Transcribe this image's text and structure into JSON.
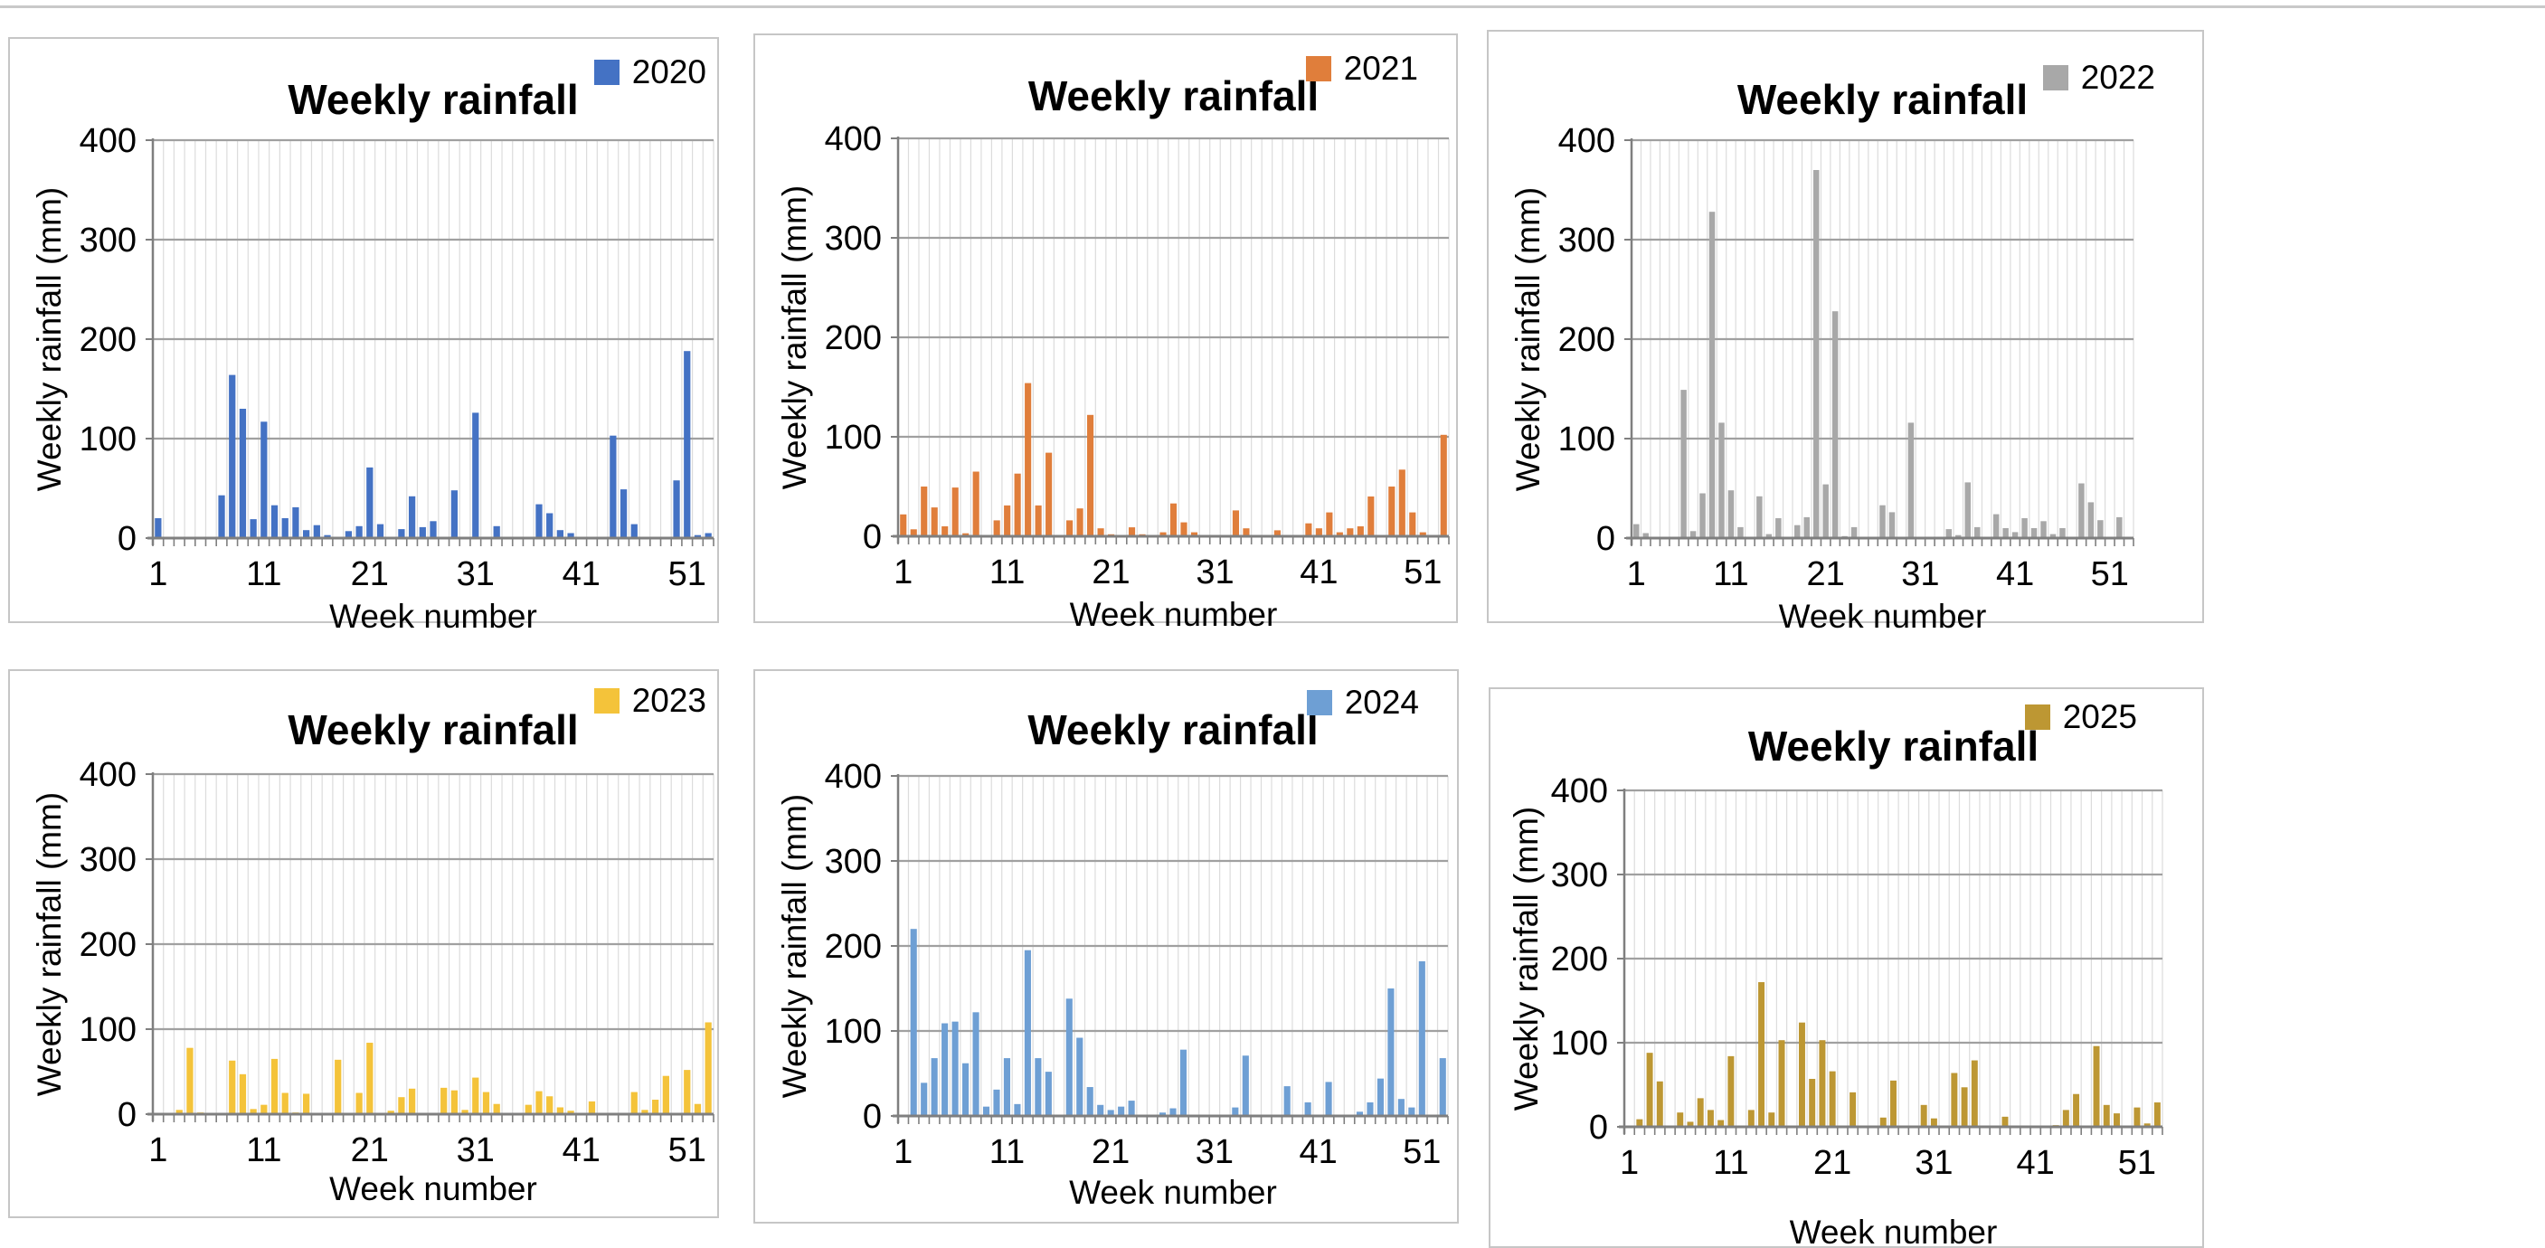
{
  "page": {
    "background": "#ffffff",
    "top_rule_color": "#c9c9c9",
    "layout_hint": "6 bar chart panels, 2 rows x 3 columns, one panel per year"
  },
  "chart_data": [
    {
      "type": "bar",
      "title": "Weekly rainfall",
      "legend": "2020",
      "legend_position": "top-right",
      "color": "#4472C4",
      "xlabel": "Week number",
      "ylabel": "Weekly rainfall (mm)",
      "x_ticks": [
        1,
        11,
        21,
        31,
        41,
        51
      ],
      "y_ticks": [
        0,
        100,
        200,
        300,
        400
      ],
      "ylim": [
        0,
        400
      ],
      "num_weeks": 53,
      "grid": "horizontal major + vertical minor per week",
      "values": [
        20,
        0,
        0,
        0,
        0,
        0,
        43,
        164,
        130,
        19,
        117,
        33,
        20,
        31,
        8,
        13,
        3,
        0,
        7,
        12,
        71,
        14,
        0,
        9,
        42,
        11,
        17,
        0,
        48,
        0,
        126,
        0,
        12,
        0,
        0,
        0,
        34,
        25,
        8,
        5,
        0,
        0,
        0,
        103,
        49,
        14,
        0,
        0,
        0,
        58,
        188,
        3,
        5
      ]
    },
    {
      "type": "bar",
      "title": "Weekly rainfall",
      "legend": "2021",
      "legend_position": "top-right",
      "color": "#E07E3B",
      "xlabel": "Week number",
      "ylabel": "Weekly rainfall (mm)",
      "x_ticks": [
        1,
        11,
        21,
        31,
        41,
        51
      ],
      "y_ticks": [
        0,
        100,
        200,
        300,
        400
      ],
      "ylim": [
        0,
        400
      ],
      "num_weeks": 53,
      "grid": "horizontal major + vertical minor per week",
      "values": [
        22,
        7,
        50,
        29,
        10,
        49,
        3,
        65,
        0,
        16,
        31,
        63,
        154,
        31,
        84,
        0,
        16,
        28,
        122,
        8,
        2,
        0,
        9,
        2,
        0,
        4,
        33,
        14,
        4,
        0,
        0,
        0,
        26,
        8,
        0,
        0,
        6,
        0,
        0,
        13,
        8,
        24,
        4,
        8,
        10,
        40,
        0,
        50,
        67,
        24,
        4,
        0,
        102
      ]
    },
    {
      "type": "bar",
      "title": "Weekly rainfall",
      "legend": "2022",
      "legend_position": "top-right",
      "color": "#A8A8A8",
      "xlabel": "Week number",
      "ylabel": "Weekly rainfall (mm)",
      "x_ticks": [
        1,
        11,
        21,
        31,
        41,
        51
      ],
      "y_ticks": [
        0,
        100,
        200,
        300,
        400
      ],
      "ylim": [
        0,
        400
      ],
      "num_weeks": 53,
      "grid": "horizontal major + vertical minor per week",
      "values": [
        14,
        5,
        0,
        0,
        0,
        149,
        7,
        45,
        328,
        116,
        48,
        11,
        0,
        42,
        4,
        20,
        0,
        13,
        21,
        370,
        54,
        228,
        2,
        11,
        0,
        0,
        33,
        26,
        0,
        116,
        0,
        1,
        1,
        9,
        3,
        56,
        11,
        0,
        24,
        10,
        6,
        20,
        10,
        17,
        4,
        10,
        0,
        55,
        36,
        18,
        0,
        21,
        0
      ]
    },
    {
      "type": "bar",
      "title": "Weekly rainfall",
      "legend": "2023",
      "legend_position": "top-right",
      "color": "#F4C33A",
      "xlabel": "Week number",
      "ylabel": "Weekly rainfall (mm)",
      "x_ticks": [
        1,
        11,
        21,
        31,
        41,
        51
      ],
      "y_ticks": [
        0,
        100,
        200,
        300,
        400
      ],
      "ylim": [
        0,
        400
      ],
      "num_weeks": 53,
      "grid": "horizontal major + vertical minor per week",
      "values": [
        0,
        0,
        5,
        78,
        2,
        0,
        0,
        63,
        47,
        6,
        11,
        65,
        25,
        2,
        24,
        0,
        0,
        64,
        0,
        25,
        84,
        0,
        4,
        20,
        30,
        0,
        0,
        31,
        28,
        5,
        43,
        26,
        12,
        0,
        0,
        11,
        27,
        21,
        8,
        4,
        0,
        15,
        0,
        0,
        0,
        26,
        5,
        17,
        45,
        0,
        52,
        12,
        108
      ]
    },
    {
      "type": "bar",
      "title": "Weekly rainfall",
      "legend": "2024",
      "legend_position": "top-right",
      "color": "#6E9FD4",
      "xlabel": "Week number",
      "ylabel": "Weekly rainfall (mm)",
      "x_ticks": [
        1,
        11,
        21,
        31,
        41,
        51
      ],
      "y_ticks": [
        0,
        100,
        200,
        300,
        400
      ],
      "ylim": [
        0,
        400
      ],
      "num_weeks": 53,
      "grid": "horizontal major + vertical minor per week",
      "values": [
        0,
        220,
        39,
        68,
        109,
        111,
        62,
        122,
        11,
        31,
        68,
        14,
        195,
        68,
        52,
        0,
        138,
        92,
        34,
        13,
        7,
        11,
        18,
        0,
        0,
        4,
        9,
        78,
        0,
        0,
        0,
        0,
        10,
        71,
        0,
        0,
        0,
        35,
        0,
        16,
        0,
        40,
        0,
        0,
        5,
        16,
        44,
        150,
        20,
        10,
        182,
        0,
        68
      ]
    },
    {
      "type": "bar",
      "title": "Weekly rainfall",
      "legend": "2025",
      "legend_position": "top-right",
      "color": "#BD9733",
      "xlabel": "Week number",
      "ylabel": "Weekly rainfall (mm)",
      "x_ticks": [
        1,
        11,
        21,
        31,
        41,
        51
      ],
      "y_ticks": [
        0,
        100,
        200,
        300,
        400
      ],
      "ylim": [
        0,
        400
      ],
      "num_weeks": 53,
      "grid": "horizontal major + vertical minor per week",
      "values": [
        0,
        9,
        88,
        54,
        0,
        17,
        6,
        34,
        20,
        8,
        84,
        0,
        20,
        172,
        17,
        103,
        0,
        124,
        57,
        103,
        66,
        0,
        41,
        0,
        0,
        11,
        55,
        0,
        0,
        26,
        10,
        0,
        64,
        47,
        79,
        0,
        0,
        12,
        0,
        0,
        0,
        0,
        2,
        20,
        39,
        0,
        96,
        26,
        16,
        0,
        23,
        4,
        29
      ]
    }
  ]
}
